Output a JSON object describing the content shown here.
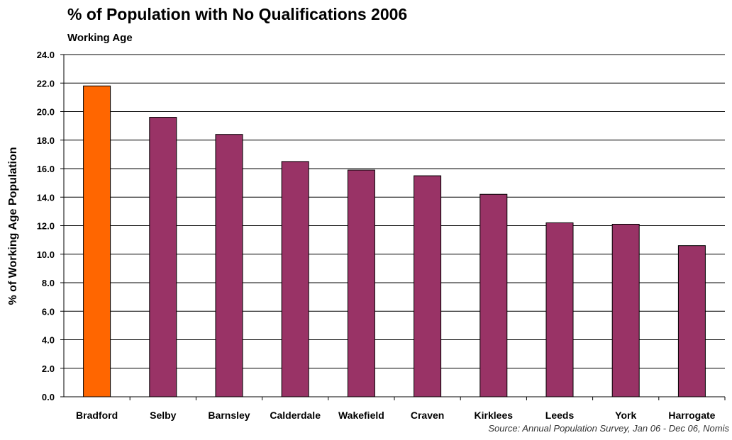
{
  "chart_data": {
    "type": "bar",
    "title": "% of Population with No Qualifications 2006",
    "subtitle": "Working Age",
    "ylabel": "% of Working Age Population",
    "xlabel": "",
    "ylim": [
      0,
      24
    ],
    "ytick_step": 2,
    "yticks": [
      "0.0",
      "2.0",
      "4.0",
      "6.0",
      "8.0",
      "10.0",
      "12.0",
      "14.0",
      "16.0",
      "18.0",
      "20.0",
      "22.0",
      "24.0"
    ],
    "grid": true,
    "categories": [
      "Bradford",
      "Selby",
      "Barnsley",
      "Calderdale",
      "Wakefield",
      "Craven",
      "Kirklees",
      "Leeds",
      "York",
      "Harrogate"
    ],
    "values": [
      21.8,
      19.6,
      18.4,
      16.5,
      15.9,
      15.5,
      14.2,
      12.2,
      12.1,
      10.6
    ],
    "colors": {
      "highlight": "#FF6600",
      "default": "#993366"
    },
    "highlight_category": "Bradford",
    "source": "Source: Annual Population Survey, Jan 06 - Dec 06, Nomis"
  }
}
